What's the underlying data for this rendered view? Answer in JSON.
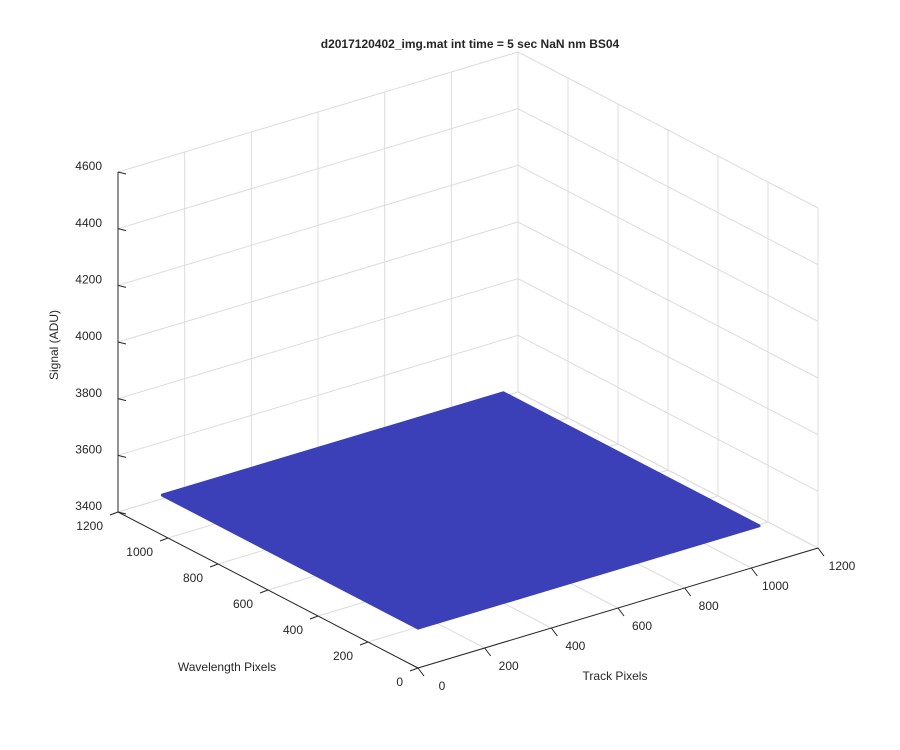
{
  "chart_data": {
    "type": "surface",
    "title": "d2017120402_img.mat int time = 5 sec  NaN nm BS04",
    "xlabel": "Track Pixels",
    "ylabel": "Wavelength Pixels",
    "zlabel": "Signal (ADU)",
    "x": [
      1,
      1024
    ],
    "y": [
      1,
      1024
    ],
    "z": [
      [
        3540,
        3540
      ],
      [
        3540,
        3540
      ]
    ],
    "color": "#3b40b8",
    "xlim": [
      0,
      1200
    ],
    "ylim": [
      0,
      1200
    ],
    "zlim": [
      3400,
      4600
    ],
    "xticks": [
      0,
      200,
      400,
      600,
      800,
      1000,
      1200
    ],
    "yticks": [
      0,
      200,
      400,
      600,
      800,
      1000,
      1200
    ],
    "zticks": [
      3400,
      3600,
      3800,
      4000,
      4200,
      4400,
      4600
    ],
    "grid": true
  }
}
